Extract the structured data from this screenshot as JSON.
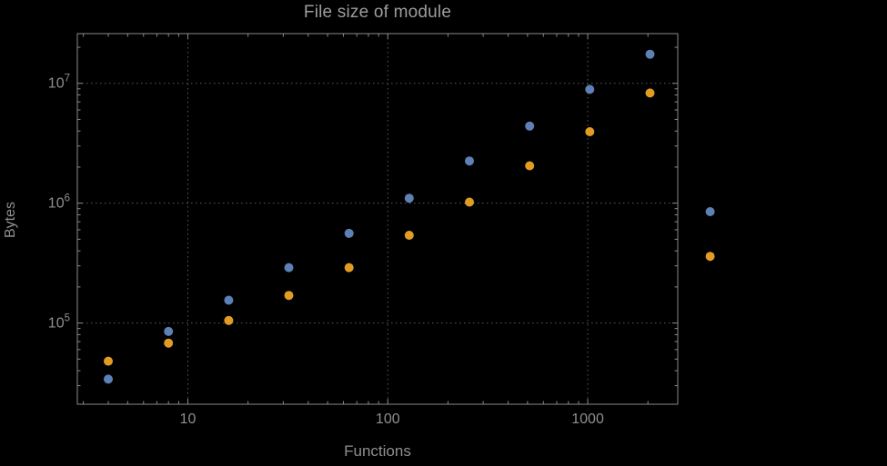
{
  "page": {
    "background": "#000000"
  },
  "chart_data": {
    "type": "scatter",
    "title": "File size of module",
    "xlabel": "Functions",
    "ylabel": "Bytes",
    "x_scale": "log",
    "y_scale": "log",
    "x_ticks": [
      10,
      100,
      1000
    ],
    "x_tick_labels": [
      "10",
      "100",
      "1000"
    ],
    "y_ticks": [
      100000,
      1000000,
      10000000
    ],
    "y_tick_labels": [
      "10^5",
      "10^6",
      "10^7"
    ],
    "xlim": [
      2.8,
      2820
    ],
    "ylim": [
      21000,
      26000000
    ],
    "grid": "dotted",
    "legend": null,
    "frame_color": "#8a8a8a",
    "grid_color": "#5c5c5c",
    "text_color": "#8f8f8f",
    "series": [
      {
        "name": "series-blue",
        "color": "#5e81b5",
        "x": [
          4,
          8,
          16,
          32,
          64,
          128,
          256,
          512,
          1024,
          2048,
          4096
        ],
        "y": [
          34000,
          85000,
          155000,
          290000,
          560000,
          1100000,
          2250000,
          4400000,
          8900000,
          17500000,
          850000
        ]
      },
      {
        "name": "series-orange",
        "color": "#e19c24",
        "x": [
          4,
          8,
          16,
          32,
          64,
          128,
          256,
          512,
          1024,
          2048,
          4096
        ],
        "y": [
          48000,
          68000,
          105000,
          170000,
          290000,
          540000,
          1020000,
          2050000,
          3950000,
          8300000,
          360000
        ]
      }
    ]
  }
}
